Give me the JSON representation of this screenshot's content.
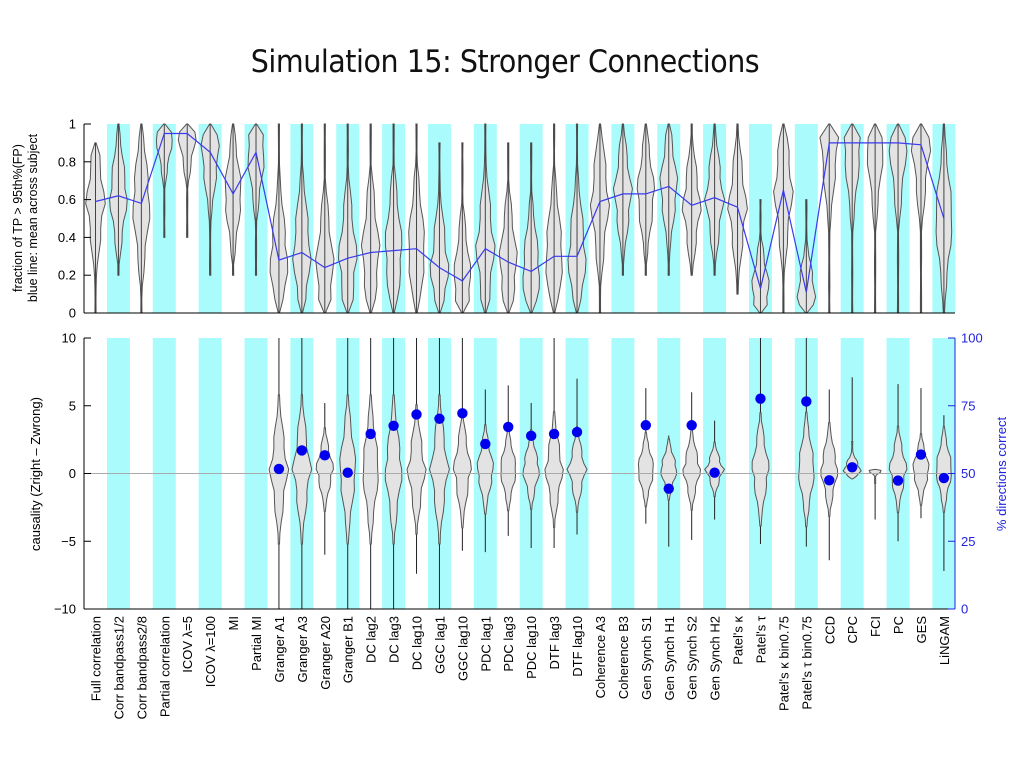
{
  "page": {
    "title": "Simulation 15: Stronger Connections"
  },
  "chart_data": [
    {
      "type": "violin+line",
      "panel": "top",
      "ylabel_line1": "fraction of TP > 95th%(FP)",
      "ylabel_line2": "blue line: mean across subject",
      "ylim": [
        0,
        1
      ],
      "yticks": [
        "0",
        "0.2",
        "0.4",
        "0.6",
        "0.8",
        "1"
      ],
      "ytick_values": [
        0,
        0.2,
        0.4,
        0.6,
        0.8,
        1
      ],
      "series": [
        {
          "name": "mean across subjects",
          "color": "#3a3aee",
          "values": [
            0.59,
            0.62,
            0.58,
            0.95,
            0.95,
            0.85,
            0.63,
            0.85,
            0.28,
            0.32,
            0.24,
            0.29,
            0.32,
            0.33,
            0.34,
            0.24,
            0.17,
            0.34,
            0.27,
            0.22,
            0.3,
            0.3,
            0.59,
            0.63,
            0.63,
            0.67,
            0.57,
            0.61,
            0.56,
            0.13,
            0.65,
            0.11,
            0.9,
            0.9,
            0.9,
            0.9,
            0.89,
            0.5
          ]
        }
      ],
      "violin_range": [
        [
          0,
          0.9
        ],
        [
          0.2,
          1
        ],
        [
          0,
          1
        ],
        [
          0.4,
          1
        ],
        [
          0.4,
          1
        ],
        [
          0.2,
          1
        ],
        [
          0.2,
          1
        ],
        [
          0.2,
          1
        ],
        [
          0,
          1
        ],
        [
          0,
          1
        ],
        [
          0,
          1
        ],
        [
          0,
          1
        ],
        [
          0,
          1
        ],
        [
          0,
          1
        ],
        [
          0,
          1
        ],
        [
          0,
          0.9
        ],
        [
          0,
          0.9
        ],
        [
          0,
          1
        ],
        [
          0,
          0.9
        ],
        [
          0,
          0.9
        ],
        [
          0,
          1
        ],
        [
          0,
          1
        ],
        [
          0,
          1
        ],
        [
          0.2,
          1
        ],
        [
          0.2,
          1
        ],
        [
          0.2,
          1
        ],
        [
          0.2,
          1
        ],
        [
          0.2,
          1
        ],
        [
          0.1,
          1
        ],
        [
          0,
          0.6
        ],
        [
          0,
          1
        ],
        [
          0,
          0.6
        ],
        [
          0,
          1
        ],
        [
          0,
          1
        ],
        [
          0,
          1
        ],
        [
          0,
          1
        ],
        [
          0,
          1
        ],
        [
          0,
          1
        ]
      ]
    },
    {
      "type": "violin+scatter",
      "panel": "bottom",
      "ylabel": "causality  (Zright – Zwrong)",
      "ylabel_right": "% directions correct",
      "ylim": [
        -10,
        10
      ],
      "yticks": [
        "−10",
        "−5",
        "0",
        "5",
        "10"
      ],
      "ytick_values": [
        -10,
        -5,
        0,
        5,
        10
      ],
      "ylim_right": [
        0,
        100
      ],
      "yticks_right": [
        "0",
        "25",
        "50",
        "75",
        "100"
      ],
      "ytick_values_right": [
        0,
        25,
        50,
        75,
        100
      ],
      "dot_color": "#0000ee",
      "percent_correct": [
        null,
        null,
        null,
        null,
        null,
        null,
        null,
        null,
        51.7,
        58.5,
        56.7,
        50.3,
        64.6,
        67.6,
        71.8,
        70.2,
        72.2,
        60.9,
        67.2,
        63.9,
        64.6,
        65.3,
        null,
        null,
        67.8,
        44.4,
        67.8,
        50.3,
        null,
        77.6,
        null,
        76.6,
        47.5,
        52.3,
        null,
        47.4,
        57.0,
        48.3
      ],
      "violin_range": [
        null,
        null,
        null,
        null,
        null,
        null,
        null,
        null,
        [
          -10,
          10
        ],
        [
          -10,
          10
        ],
        [
          -6,
          5.2
        ],
        [
          -10,
          10
        ],
        [
          -10,
          10
        ],
        [
          -10,
          10
        ],
        [
          -7.4,
          10
        ],
        [
          -10,
          10
        ],
        [
          -5.7,
          10
        ],
        [
          -5.8,
          6.2
        ],
        [
          -4.6,
          6.5
        ],
        [
          -5.5,
          5.2
        ],
        [
          -5.5,
          10
        ],
        [
          -4.5,
          7
        ],
        null,
        null,
        [
          -3.7,
          6.3
        ],
        [
          -5.4,
          2.8
        ],
        [
          -4.9,
          6
        ],
        [
          -3.4,
          3.9
        ],
        null,
        [
          -5.2,
          10
        ],
        null,
        [
          -5.4,
          10
        ],
        [
          -6.4,
          6.2
        ],
        [
          -0.4,
          7.1
        ],
        [
          -3.4,
          0.3
        ],
        [
          -5,
          6.6
        ],
        [
          -3.3,
          6.3
        ],
        [
          -7.2,
          4.3
        ]
      ]
    }
  ],
  "categories": [
    "Full correlation",
    "Corr bandpass1/2",
    "Corr bandpass2/8",
    "Partial correlation",
    "ICOV λ=5",
    "ICOV λ=100",
    "MI",
    "Partial MI",
    "Granger A1",
    "Granger A3",
    "Granger A20",
    "Granger B1",
    "DC lag2",
    "DC lag3",
    "DC lag10",
    "GGC lag1",
    "GGC lag10",
    "PDC lag1",
    "PDC lag3",
    "PDC lag10",
    "DTF lag3",
    "DTF lag10",
    "Coherence A3",
    "Coherence B3",
    "Gen Synch S1",
    "Gen Synch H1",
    "Gen Synch S2",
    "Gen Synch H2",
    "Patel's κ",
    "Patel's τ",
    "Patel's κ bin0.75",
    "Patel's τ bin0.75",
    "CCD",
    "CPC",
    "FCI",
    "PC",
    "GES",
    "LiNGAM"
  ],
  "colors": {
    "stripe": "#aafcfc",
    "violin_fill": "#e3e3e3",
    "violin_stroke": "#555555",
    "line": "#3a3aee",
    "right_axis": "#2222dd"
  }
}
